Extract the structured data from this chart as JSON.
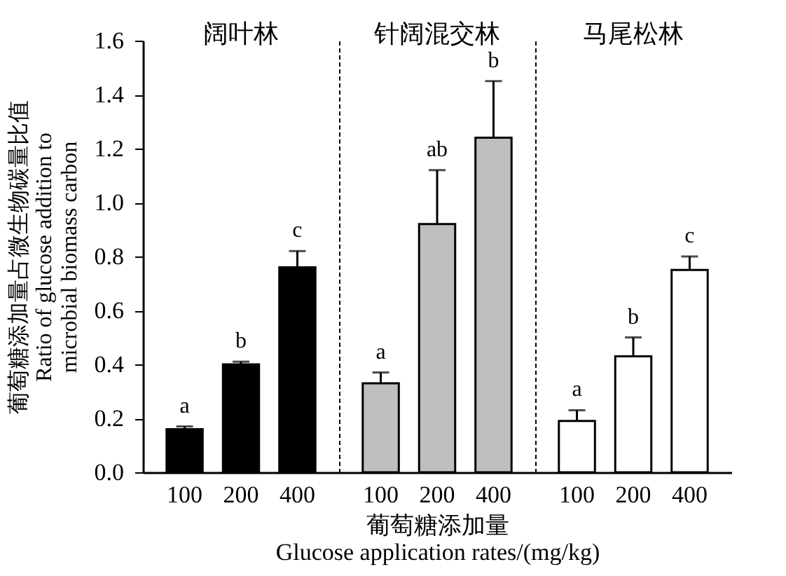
{
  "chart_data": [
    {
      "type": "bar",
      "title": "阔叶林",
      "ylabel": "葡萄糖添加量占微生物碳量比值\nRatio of glucose addition to\nmicrobial biomass carbon",
      "categories": [
        "100",
        "200",
        "400"
      ],
      "values": [
        0.16,
        0.4,
        0.76
      ],
      "errors": [
        [
          0.16,
          0.17
        ],
        [
          0.4,
          0.41
        ],
        [
          0.76,
          0.82
        ]
      ],
      "value_labels": [
        "a",
        "b",
        "c"
      ],
      "color": "#000000",
      "ylim": [
        0,
        1.6
      ],
      "yticks": [
        {
          "value": 0,
          "label": "0.0"
        },
        0.2,
        0.4,
        0.6,
        0.8,
        {
          "value": 1,
          "label": "1.0"
        },
        1.2,
        1.4,
        1.6
      ],
      "grid": false
    },
    {
      "type": "bar",
      "title": "针阔混交林",
      "xlabel": "葡萄糖添加量\nGlucose application rates/(mg/kg)",
      "categories": [
        "100",
        "200",
        "400"
      ],
      "values": [
        0.33,
        0.92,
        1.24
      ],
      "errors": [
        [
          0.33,
          0.37
        ],
        [
          0.92,
          1.12
        ],
        [
          1.24,
          1.45
        ]
      ],
      "value_labels": [
        "a",
        "ab",
        "b"
      ],
      "color": "#bfbfbf",
      "ylim": [
        0,
        1.6
      ],
      "tick_labels": "x",
      "grid": false
    },
    {
      "type": "bar",
      "title": "马尾松林",
      "categories": [
        "100",
        "200",
        "400"
      ],
      "values": [
        0.19,
        0.43,
        0.75
      ],
      "errors": [
        [
          0.19,
          0.23
        ],
        [
          0.43,
          0.5
        ],
        [
          0.75,
          0.8
        ]
      ],
      "value_labels": [
        "a",
        "b",
        "c"
      ],
      "color": "#ffffff",
      "ylim": [
        0,
        1.6
      ],
      "tick_labels": "x",
      "grid": false
    }
  ]
}
